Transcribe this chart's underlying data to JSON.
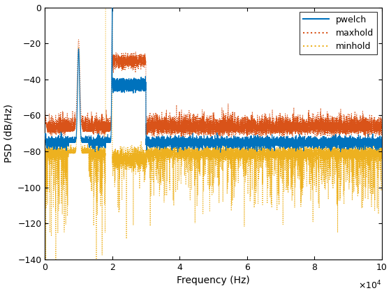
{
  "title": "",
  "xlabel": "Frequency (Hz)",
  "ylabel": "PSD (dB/Hz)",
  "xlim": [
    0,
    100000
  ],
  "ylim": [
    -140,
    0
  ],
  "yticks": [
    0,
    -20,
    -40,
    -60,
    -80,
    -100,
    -120,
    -140
  ],
  "pwelch_color": "#0072BD",
  "maxhold_color": "#D95319",
  "minhold_color": "#EDB120",
  "pwelch_lw": 0.8,
  "maxhold_lw": 0.8,
  "minhold_lw": 0.8,
  "legend_labels": [
    "pwelch",
    "maxhold",
    "minhold"
  ],
  "noise_floor_pwelch": -75,
  "noise_floor_maxhold": -69,
  "noise_floor_minhold": -81,
  "spike1_freq": 10000,
  "spike2_freq": 20000,
  "flat_region_start": 20000,
  "flat_region_end": 30000,
  "flat_pwelch": -43,
  "flat_maxhold": -30,
  "background_color": "#ffffff"
}
